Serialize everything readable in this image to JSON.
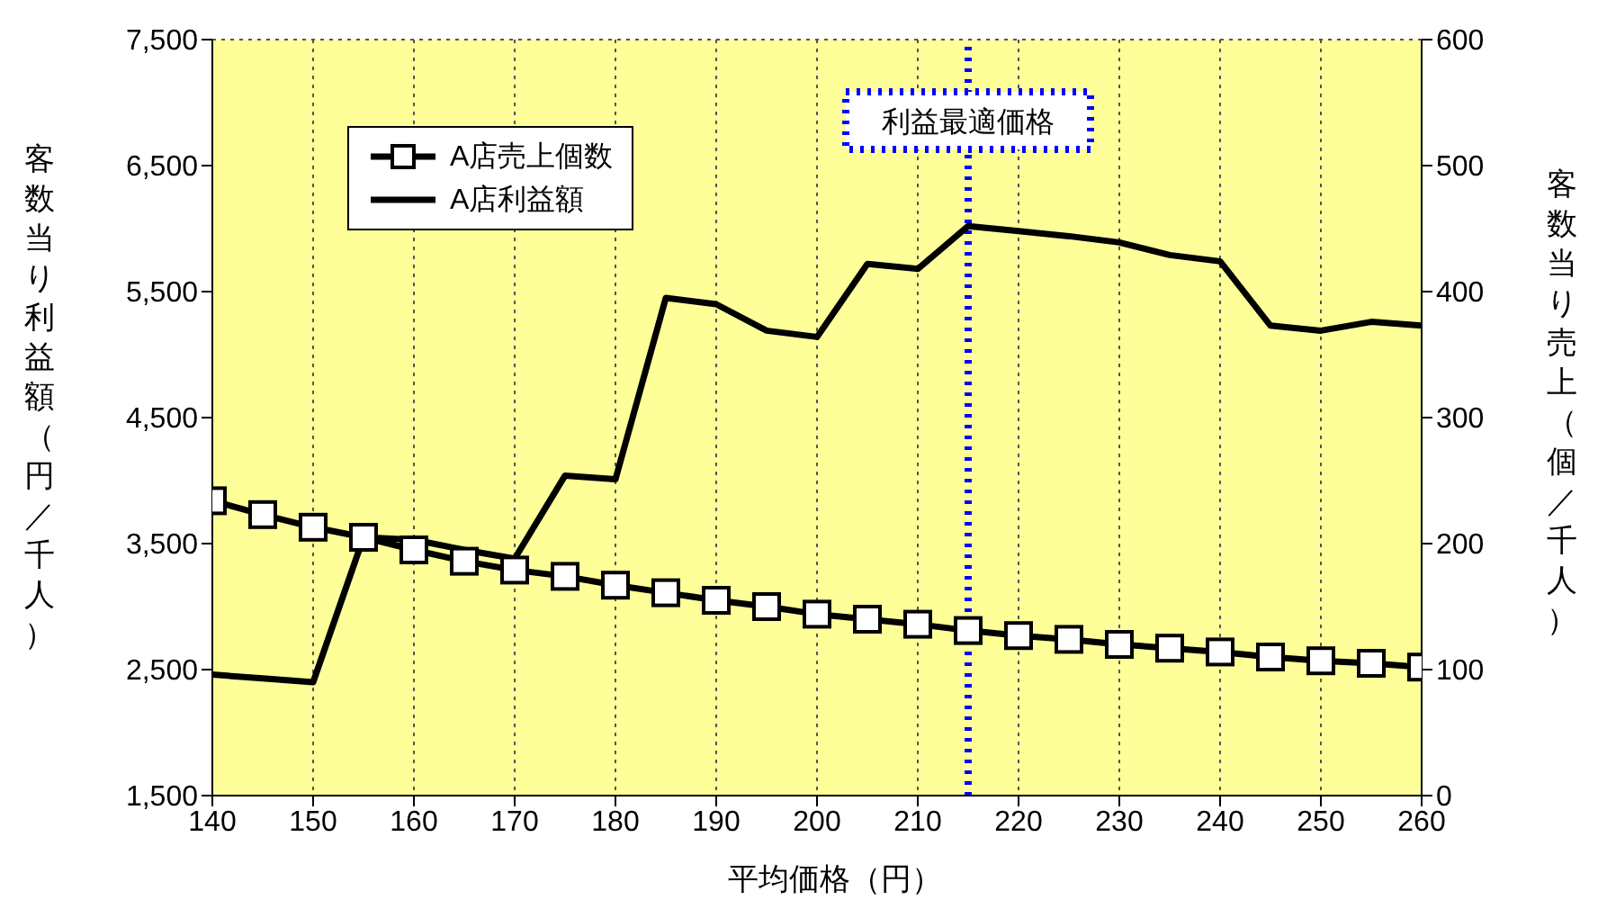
{
  "chart_data": {
    "type": "line",
    "xlabel": "平均価格（円）",
    "ylabel": "客数当り利益額（円／千人）",
    "y2label": "客数当り売上（個／千人）",
    "x": [
      140,
      145,
      150,
      155,
      160,
      165,
      170,
      175,
      180,
      185,
      190,
      195,
      200,
      205,
      210,
      215,
      220,
      225,
      230,
      235,
      240,
      245,
      250,
      255,
      260
    ],
    "series": [
      {
        "name": "A店売上個数",
        "color": "#000000",
        "axis": "y2",
        "marker": "square",
        "values": [
          234,
          223,
          213,
          205,
          195,
          186,
          179,
          174,
          167,
          161,
          155,
          150,
          144,
          140,
          136,
          131,
          127,
          124,
          120,
          117,
          114,
          110,
          107,
          105,
          102
        ]
      },
      {
        "name": "A店利益額",
        "color": "#000000",
        "axis": "y",
        "marker": "none",
        "values": [
          2460,
          2430,
          2400,
          3550,
          3530,
          3450,
          3380,
          4040,
          4010,
          5450,
          5400,
          5190,
          5140,
          5720,
          5680,
          6020,
          5980,
          5940,
          5890,
          5790,
          5740,
          5230,
          5190,
          5260,
          5230
        ]
      }
    ],
    "xlim": [
      140,
      260
    ],
    "xticks": [
      140,
      150,
      160,
      170,
      180,
      190,
      200,
      210,
      220,
      230,
      240,
      250,
      260
    ],
    "ylim": [
      1500,
      7500
    ],
    "yticks": [
      {
        "value": 1500,
        "label": "1,500"
      },
      {
        "value": 2500,
        "label": "2,500"
      },
      {
        "value": 3500,
        "label": "3,500"
      },
      {
        "value": 4500,
        "label": "4,500"
      },
      {
        "value": 5500,
        "label": "5,500"
      },
      {
        "value": 6500,
        "label": "6,500"
      },
      {
        "value": 7500,
        "label": "7,500"
      }
    ],
    "y2lim": [
      0,
      600
    ],
    "y2ticks": [
      0,
      100,
      200,
      300,
      400,
      500,
      600
    ],
    "ref_lines": [
      {
        "axis": "x",
        "value": 215,
        "label": "利益最適価格",
        "color": "#0000ff",
        "line_style": "dotted"
      }
    ],
    "grid": true,
    "legend": "top left",
    "line_style": "solid"
  }
}
